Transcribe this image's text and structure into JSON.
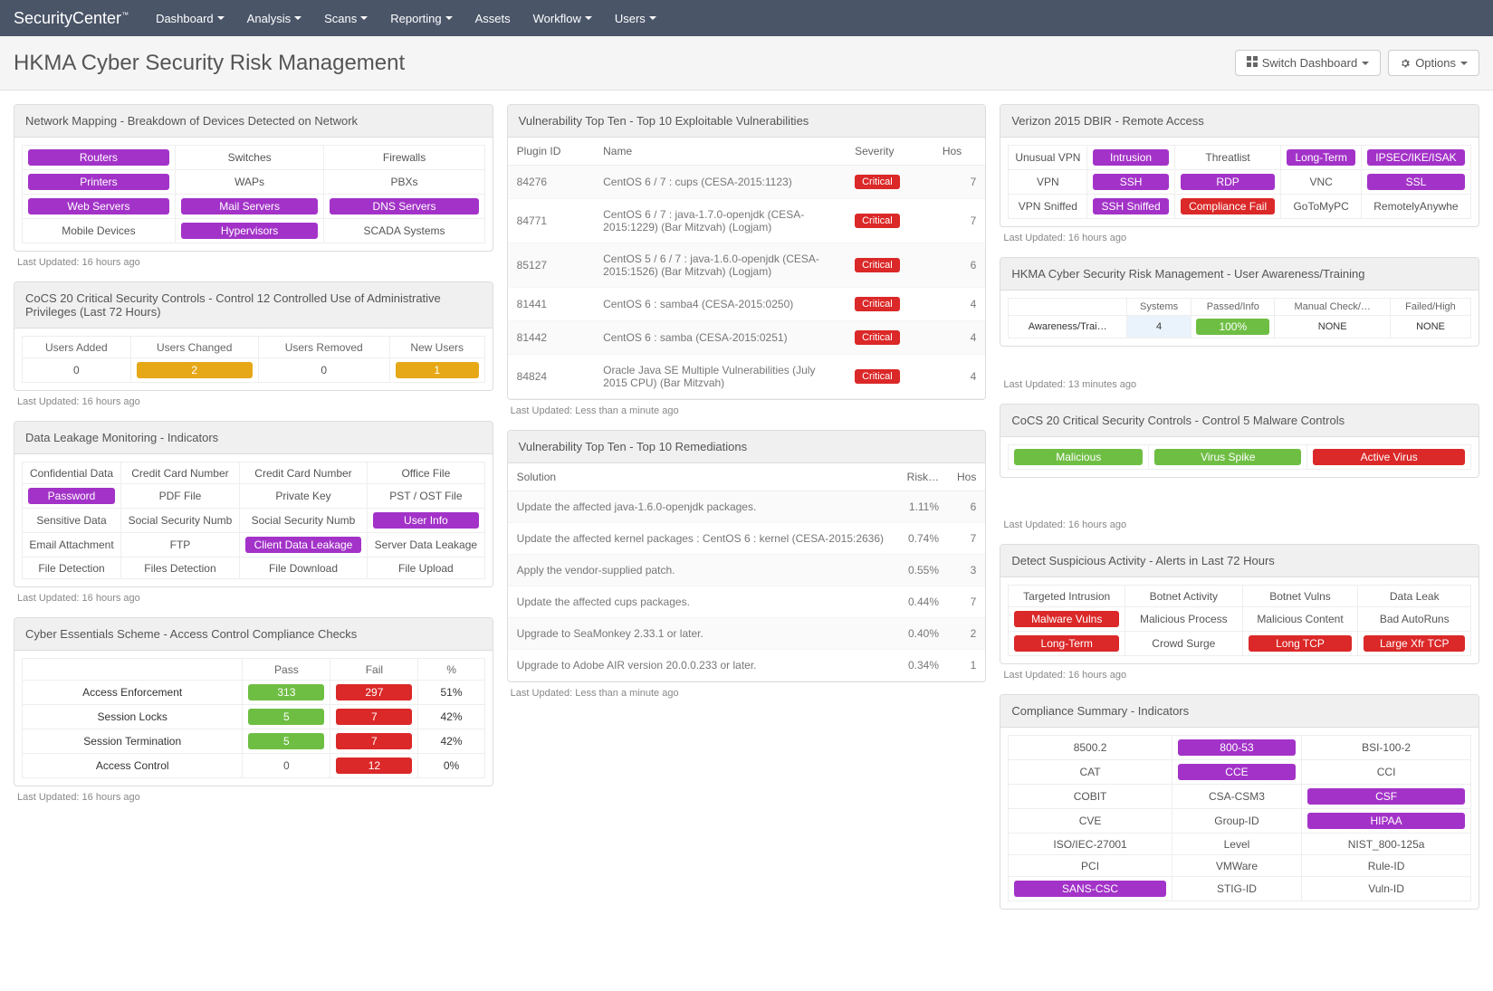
{
  "brand": "SecurityCenter",
  "nav": [
    "Dashboard",
    "Analysis",
    "Scans",
    "Reporting",
    "Assets",
    "Workflow",
    "Users"
  ],
  "nav_no_caret": [
    "Assets"
  ],
  "page_title": "HKMA Cyber Security Risk Management",
  "switch_btn": "Switch Dashboard",
  "options_btn": "Options",
  "colors": {
    "purple": "#a333c8",
    "green": "#6fbe44",
    "red": "#db2828",
    "orange": "#e6a817",
    "navbar": "#4a5568"
  },
  "network_mapping": {
    "title": "Network Mapping - Breakdown of Devices Detected on Network",
    "rows": [
      [
        {
          "t": "Routers",
          "c": "purple"
        },
        {
          "t": "Switches"
        },
        {
          "t": "Firewalls"
        }
      ],
      [
        {
          "t": "Printers",
          "c": "purple"
        },
        {
          "t": "WAPs"
        },
        {
          "t": "PBXs"
        }
      ],
      [
        {
          "t": "Web Servers",
          "c": "purple"
        },
        {
          "t": "Mail Servers",
          "c": "purple"
        },
        {
          "t": "DNS Servers",
          "c": "purple"
        }
      ],
      [
        {
          "t": "Mobile Devices"
        },
        {
          "t": "Hypervisors",
          "c": "purple"
        },
        {
          "t": "SCADA Systems"
        }
      ]
    ],
    "updated": "Last Updated: 16 hours ago"
  },
  "cocs12": {
    "title": "CoCS 20 Critical Security Controls - Control 12 Controlled Use of Administrative Privileges (Last 72 Hours)",
    "headers": [
      "Users Added",
      "Users Changed",
      "Users Removed",
      "New Users"
    ],
    "values": [
      {
        "t": "0"
      },
      {
        "t": "2",
        "c": "orange"
      },
      {
        "t": "0"
      },
      {
        "t": "1",
        "c": "orange"
      }
    ],
    "updated": "Last Updated: 16 hours ago"
  },
  "dlm": {
    "title": "Data Leakage Monitoring - Indicators",
    "rows": [
      [
        {
          "t": "Confidential Data"
        },
        {
          "t": "Credit Card Number"
        },
        {
          "t": "Credit Card Number"
        },
        {
          "t": "Office File"
        }
      ],
      [
        {
          "t": "Password",
          "c": "purple"
        },
        {
          "t": "PDF File"
        },
        {
          "t": "Private Key"
        },
        {
          "t": "PST / OST File"
        }
      ],
      [
        {
          "t": "Sensitive Data"
        },
        {
          "t": "Social Security Numb"
        },
        {
          "t": "Social Security Numb"
        },
        {
          "t": "User Info",
          "c": "purple"
        }
      ],
      [
        {
          "t": "Email Attachment"
        },
        {
          "t": "FTP"
        },
        {
          "t": "Client Data Leakage",
          "c": "purple"
        },
        {
          "t": "Server Data Leakage"
        }
      ],
      [
        {
          "t": "File Detection"
        },
        {
          "t": "Files Detection"
        },
        {
          "t": "File Download"
        },
        {
          "t": "File Upload"
        }
      ]
    ],
    "updated": "Last Updated: 16 hours ago"
  },
  "cyber_essentials": {
    "title": "Cyber Essentials Scheme - Access Control Compliance Checks",
    "headers": [
      "",
      "Pass",
      "Fail",
      "%"
    ],
    "rows": [
      {
        "label": "Access Enforcement",
        "pass": "313",
        "fail": "297",
        "pct": "51%"
      },
      {
        "label": "Session Locks",
        "pass": "5",
        "fail": "7",
        "pct": "42%"
      },
      {
        "label": "Session Termination",
        "pass": "5",
        "fail": "7",
        "pct": "42%"
      },
      {
        "label": "Access Control",
        "pass": "0",
        "fail": "12",
        "pct": "0%",
        "pass_plain": true
      }
    ],
    "updated": "Last Updated: 16 hours ago"
  },
  "vuln_top10": {
    "title": "Vulnerability Top Ten - Top 10 Exploitable Vulnerabilities",
    "headers": [
      "Plugin ID",
      "Name",
      "Severity",
      "Hos"
    ],
    "rows": [
      {
        "id": "84276",
        "name": "CentOS 6 / 7 : cups (CESA-2015:1123)",
        "sev": "Critical",
        "hosts": "7"
      },
      {
        "id": "84771",
        "name": "CentOS 6 / 7 : java-1.7.0-openjdk (CESA-2015:1229) (Bar Mitzvah) (Logjam)",
        "sev": "Critical",
        "hosts": "7"
      },
      {
        "id": "85127",
        "name": "CentOS 5 / 6 / 7 : java-1.6.0-openjdk (CESA-2015:1526) (Bar Mitzvah) (Logjam)",
        "sev": "Critical",
        "hosts": "6"
      },
      {
        "id": "81441",
        "name": "CentOS 6 : samba4 (CESA-2015:0250)",
        "sev": "Critical",
        "hosts": "4"
      },
      {
        "id": "81442",
        "name": "CentOS 6 : samba (CESA-2015:0251)",
        "sev": "Critical",
        "hosts": "4"
      },
      {
        "id": "84824",
        "name": "Oracle Java SE Multiple Vulnerabilities (July 2015 CPU) (Bar Mitzvah)",
        "sev": "Critical",
        "hosts": "4"
      }
    ],
    "updated": "Last Updated: Less than a minute ago"
  },
  "remediations": {
    "title": "Vulnerability Top Ten - Top 10 Remediations",
    "headers": [
      "Solution",
      "Risk…",
      "Hos"
    ],
    "rows": [
      {
        "sol": "Update the affected java-1.6.0-openjdk packages.",
        "risk": "1.11%",
        "hosts": "6"
      },
      {
        "sol": "Update the affected kernel packages : CentOS 6 : kernel (CESA-2015:2636)",
        "risk": "0.74%",
        "hosts": "7"
      },
      {
        "sol": "Apply the vendor-supplied patch.",
        "risk": "0.55%",
        "hosts": "3"
      },
      {
        "sol": "Update the affected cups packages.",
        "risk": "0.44%",
        "hosts": "7"
      },
      {
        "sol": "Upgrade to SeaMonkey 2.33.1 or later.",
        "risk": "0.40%",
        "hosts": "2"
      },
      {
        "sol": "Upgrade to Adobe AIR version 20.0.0.233 or later.",
        "risk": "0.34%",
        "hosts": "1"
      }
    ],
    "updated": "Last Updated: Less than a minute ago"
  },
  "dbir": {
    "title": "Verizon 2015 DBIR - Remote Access",
    "rows": [
      [
        {
          "t": "Unusual VPN"
        },
        {
          "t": "Intrusion",
          "c": "purple"
        },
        {
          "t": "Threatlist"
        },
        {
          "t": "Long-Term",
          "c": "purple"
        },
        {
          "t": "IPSEC/IKE/ISAK",
          "c": "purple"
        }
      ],
      [
        {
          "t": "VPN"
        },
        {
          "t": "SSH",
          "c": "purple"
        },
        {
          "t": "RDP",
          "c": "purple"
        },
        {
          "t": "VNC"
        },
        {
          "t": "SSL",
          "c": "purple"
        }
      ],
      [
        {
          "t": "VPN Sniffed"
        },
        {
          "t": "SSH Sniffed",
          "c": "purple"
        },
        {
          "t": "Compliance Fail",
          "c": "red"
        },
        {
          "t": "GoToMyPC"
        },
        {
          "t": "RemotelyAnywhe"
        }
      ]
    ],
    "updated": "Last Updated: 16 hours ago"
  },
  "hkma_training": {
    "title": "HKMA Cyber Security Risk Management - User Awareness/Training",
    "headers": [
      "",
      "Systems",
      "Passed/Info",
      "Manual Check/…",
      "Failed/High"
    ],
    "row": {
      "label": "Awareness/Trai…",
      "systems": "4",
      "passed": "100%",
      "manual": "NONE",
      "failed": "NONE"
    },
    "updated": "Last Updated: 13 minutes ago"
  },
  "cocs5": {
    "title": "CoCS 20 Critical Security Controls - Control 5 Malware Controls",
    "items": [
      {
        "t": "Malicious",
        "c": "green"
      },
      {
        "t": "Virus Spike",
        "c": "green"
      },
      {
        "t": "Active Virus",
        "c": "red"
      }
    ],
    "updated": "Last Updated: 16 hours ago"
  },
  "suspicious": {
    "title": "Detect Suspicious Activity - Alerts in Last 72 Hours",
    "rows": [
      [
        {
          "t": "Targeted Intrusion"
        },
        {
          "t": "Botnet Activity"
        },
        {
          "t": "Botnet Vulns"
        },
        {
          "t": "Data Leak"
        }
      ],
      [
        {
          "t": "Malware Vulns",
          "c": "red"
        },
        {
          "t": "Malicious Process"
        },
        {
          "t": "Malicious Content"
        },
        {
          "t": "Bad AutoRuns"
        }
      ],
      [
        {
          "t": "Long-Term",
          "c": "red"
        },
        {
          "t": "Crowd Surge"
        },
        {
          "t": "Long TCP",
          "c": "red"
        },
        {
          "t": "Large Xfr TCP",
          "c": "red"
        }
      ]
    ],
    "updated": "Last Updated: 16 hours ago"
  },
  "compliance": {
    "title": "Compliance Summary - Indicators",
    "rows": [
      [
        {
          "t": "8500.2"
        },
        {
          "t": "800-53",
          "c": "purple"
        },
        {
          "t": "BSI-100-2"
        }
      ],
      [
        {
          "t": "CAT"
        },
        {
          "t": "CCE",
          "c": "purple"
        },
        {
          "t": "CCI"
        }
      ],
      [
        {
          "t": "COBIT"
        },
        {
          "t": "CSA-CSM3"
        },
        {
          "t": "CSF",
          "c": "purple"
        }
      ],
      [
        {
          "t": "CVE"
        },
        {
          "t": "Group-ID"
        },
        {
          "t": "HIPAA",
          "c": "purple"
        }
      ],
      [
        {
          "t": "ISO/IEC-27001"
        },
        {
          "t": "Level"
        },
        {
          "t": "NIST_800-125a"
        }
      ],
      [
        {
          "t": "PCI"
        },
        {
          "t": "VMWare"
        },
        {
          "t": "Rule-ID"
        }
      ],
      [
        {
          "t": "SANS-CSC",
          "c": "purple"
        },
        {
          "t": "STIG-ID"
        },
        {
          "t": "Vuln-ID"
        }
      ]
    ]
  }
}
